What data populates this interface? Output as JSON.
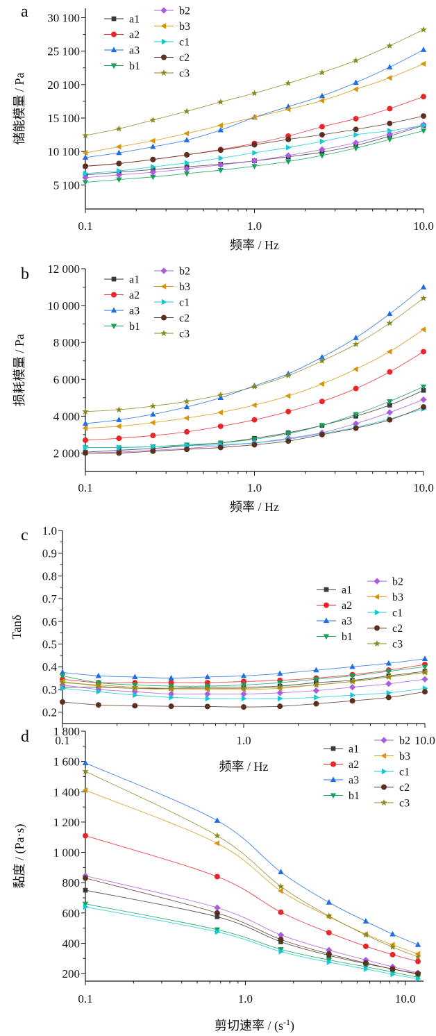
{
  "legend_labels": [
    "a1",
    "a2",
    "a3",
    "b1",
    "b2",
    "b3",
    "c1",
    "c2",
    "c3"
  ],
  "colors": {
    "a1": "#3a3a3a",
    "a2": "#e8262a",
    "a3": "#1f6fe0",
    "b1": "#16a05a",
    "b2": "#a85ce0",
    "b3": "#d6950c",
    "c1": "#13c9d6",
    "c2": "#5a3020",
    "c3": "#8a8a22"
  },
  "markers": {
    "a1": "square",
    "a2": "circle",
    "a3": "triangle-up",
    "b1": "triangle-down",
    "b2": "diamond",
    "b3": "triangle-left",
    "c1": "triangle-right",
    "c2": "circle",
    "c3": "star"
  },
  "chart_data": [
    {
      "type": "line",
      "panel": "a",
      "xlabel": "频率 / Hz",
      "ylabel": "储能模量 / Pa",
      "xscale": "log",
      "xlim": [
        0.1,
        10.0
      ],
      "ylim": [
        1500,
        31500
      ],
      "xticks": [
        "0.1",
        "1.0",
        "10.0"
      ],
      "yticks": [
        5100,
        10100,
        15100,
        20100,
        25100,
        30100
      ],
      "ytick_labels": [
        "5 100",
        "10 100",
        "15 100",
        "20 100",
        "25 100",
        "30 100"
      ],
      "legend_position": "top-left",
      "x": [
        0.1,
        0.158,
        0.251,
        0.398,
        0.631,
        1.0,
        1.585,
        2.512,
        3.981,
        6.31,
        10.0
      ],
      "series": [
        {
          "name": "a1",
          "values": [
            6600,
            7000,
            7400,
            7800,
            8200,
            8700,
            9300,
            10000,
            11000,
            12400,
            14000
          ]
        },
        {
          "name": "a2",
          "values": [
            7900,
            8300,
            8900,
            9600,
            10400,
            11300,
            12400,
            13800,
            15000,
            16500,
            18300
          ]
        },
        {
          "name": "a3",
          "values": [
            9200,
            9900,
            10800,
            11800,
            13300,
            15200,
            16800,
            18400,
            20400,
            22700,
            25300
          ]
        },
        {
          "name": "b1",
          "values": [
            5500,
            5900,
            6300,
            6800,
            7300,
            7900,
            8600,
            9500,
            10600,
            11900,
            13200
          ]
        },
        {
          "name": "b2",
          "values": [
            6200,
            6600,
            7000,
            7500,
            8100,
            8700,
            9500,
            10400,
            11400,
            12700,
            14100
          ]
        },
        {
          "name": "b3",
          "values": [
            9900,
            10800,
            11700,
            12800,
            14000,
            15200,
            16400,
            17700,
            19400,
            21100,
            23200
          ]
        },
        {
          "name": "c1",
          "values": [
            6800,
            7200,
            7800,
            8400,
            9100,
            9900,
            10700,
            11600,
            12600,
            13200,
            14000
          ]
        },
        {
          "name": "c2",
          "values": [
            7900,
            8300,
            8900,
            9600,
            10300,
            11100,
            11900,
            12600,
            13400,
            14300,
            15400
          ]
        },
        {
          "name": "c3",
          "values": [
            12500,
            13500,
            14800,
            16100,
            17500,
            18800,
            20300,
            21900,
            23700,
            25900,
            28300
          ]
        }
      ]
    },
    {
      "type": "line",
      "panel": "b",
      "xlabel": "频率 / Hz",
      "ylabel": "损耗模量 / Pa",
      "xscale": "log",
      "xlim": [
        0.1,
        10.0
      ],
      "ylim": [
        1000,
        12000
      ],
      "xticks": [
        "0.1",
        "1.0",
        "10.0"
      ],
      "yticks": [
        2000,
        4000,
        6000,
        8000,
        10000,
        12000
      ],
      "ytick_labels": [
        "2 000",
        "4 000",
        "6 000",
        "8 000",
        "10 000",
        "12 000"
      ],
      "legend_position": "top-left",
      "x": [
        0.1,
        0.158,
        0.251,
        0.398,
        0.631,
        1.0,
        1.585,
        2.512,
        3.981,
        6.31,
        10.0
      ],
      "series": [
        {
          "name": "a1",
          "values": [
            2050,
            2150,
            2250,
            2400,
            2550,
            2800,
            3100,
            3500,
            4000,
            4600,
            5400
          ]
        },
        {
          "name": "a2",
          "values": [
            2700,
            2800,
            2950,
            3150,
            3450,
            3800,
            4250,
            4800,
            5500,
            6400,
            7500
          ]
        },
        {
          "name": "a3",
          "values": [
            3600,
            3800,
            4100,
            4500,
            5000,
            5650,
            6300,
            7200,
            8250,
            9550,
            11000
          ]
        },
        {
          "name": "b1",
          "values": [
            2300,
            2300,
            2350,
            2450,
            2550,
            2750,
            3050,
            3500,
            4100,
            4800,
            5600
          ]
        },
        {
          "name": "b2",
          "values": [
            2000,
            2050,
            2150,
            2250,
            2400,
            2550,
            2800,
            3100,
            3600,
            4200,
            4900
          ]
        },
        {
          "name": "b3",
          "values": [
            3350,
            3450,
            3650,
            3900,
            4200,
            4600,
            5100,
            5750,
            6550,
            7500,
            8700
          ]
        },
        {
          "name": "c1",
          "values": [
            2300,
            2300,
            2350,
            2400,
            2450,
            2550,
            2750,
            3050,
            3400,
            3850,
            4400
          ]
        },
        {
          "name": "c2",
          "values": [
            2000,
            2000,
            2100,
            2200,
            2300,
            2450,
            2650,
            3000,
            3350,
            3800,
            4500
          ]
        },
        {
          "name": "c3",
          "values": [
            4250,
            4350,
            4550,
            4800,
            5150,
            5600,
            6200,
            7000,
            7900,
            9050,
            10400
          ]
        }
      ]
    },
    {
      "type": "line",
      "panel": "c",
      "xlabel": "频率 / Hz",
      "ylabel": "Tanδ",
      "xscale": "log",
      "xlim": [
        0.1,
        10.0
      ],
      "ylim": [
        0.15,
        1.0
      ],
      "xticks": [
        "0.1",
        "1.0",
        "10.0"
      ],
      "yticks": [
        0.2,
        0.3,
        0.4,
        0.5,
        0.6,
        0.7,
        0.8,
        0.9,
        1.0
      ],
      "ytick_labels": [
        "0.2",
        "0.3",
        "0.4",
        "0.5",
        "0.6",
        "0.7",
        "0.8",
        "0.9",
        "1.0"
      ],
      "legend_position": "top-right",
      "x": [
        0.1,
        0.158,
        0.251,
        0.398,
        0.631,
        1.0,
        1.585,
        2.512,
        3.981,
        6.31,
        10.0
      ],
      "series": [
        {
          "name": "a1",
          "values": [
            0.31,
            0.31,
            0.305,
            0.305,
            0.31,
            0.31,
            0.315,
            0.33,
            0.34,
            0.36,
            0.38
          ]
        },
        {
          "name": "a2",
          "values": [
            0.345,
            0.33,
            0.33,
            0.33,
            0.33,
            0.335,
            0.34,
            0.35,
            0.365,
            0.385,
            0.41
          ]
        },
        {
          "name": "a3",
          "values": [
            0.375,
            0.36,
            0.355,
            0.35,
            0.355,
            0.36,
            0.37,
            0.385,
            0.4,
            0.415,
            0.435
          ]
        },
        {
          "name": "b1",
          "values": [
            0.36,
            0.33,
            0.32,
            0.315,
            0.315,
            0.32,
            0.33,
            0.345,
            0.36,
            0.38,
            0.4
          ]
        },
        {
          "name": "b2",
          "values": [
            0.32,
            0.3,
            0.29,
            0.28,
            0.28,
            0.28,
            0.285,
            0.295,
            0.31,
            0.325,
            0.345
          ]
        },
        {
          "name": "b3",
          "values": [
            0.335,
            0.315,
            0.305,
            0.3,
            0.3,
            0.3,
            0.305,
            0.32,
            0.335,
            0.355,
            0.375
          ]
        },
        {
          "name": "c1",
          "values": [
            0.305,
            0.29,
            0.275,
            0.265,
            0.26,
            0.26,
            0.26,
            0.265,
            0.275,
            0.285,
            0.305
          ]
        },
        {
          "name": "c2",
          "values": [
            0.245,
            0.232,
            0.228,
            0.226,
            0.225,
            0.223,
            0.226,
            0.237,
            0.25,
            0.265,
            0.29
          ]
        },
        {
          "name": "c3",
          "values": [
            0.33,
            0.32,
            0.31,
            0.305,
            0.305,
            0.305,
            0.31,
            0.32,
            0.335,
            0.355,
            0.375
          ]
        }
      ]
    },
    {
      "type": "line",
      "panel": "d",
      "xlabel": "剪切速率 / (s",
      "xlabel_superscript": "-1",
      "xlabel_suffix": ")",
      "ylabel": "黏度 / (Pa·s)",
      "xscale": "log",
      "xlim": [
        0.1,
        13.0
      ],
      "ylim": [
        150,
        1800
      ],
      "xticks": [
        "0.1",
        "1.0",
        "10.0"
      ],
      "yticks": [
        200,
        400,
        600,
        800,
        1000,
        1200,
        1400,
        1600,
        1800
      ],
      "ytick_labels": [
        "200",
        "400",
        "600",
        "800",
        "1 000",
        "1 200",
        "1 400",
        "1 600",
        "1 800"
      ],
      "legend_position": "top-right",
      "x": [
        0.1,
        0.667,
        1.667,
        3.333,
        5.667,
        8.333,
        12.0
      ],
      "series": [
        {
          "name": "a1",
          "values": [
            750,
            575,
            410,
            320,
            265,
            230,
            195
          ]
        },
        {
          "name": "a2",
          "values": [
            1110,
            840,
            605,
            470,
            380,
            325,
            280
          ]
        },
        {
          "name": "a3",
          "values": [
            1590,
            1210,
            870,
            670,
            545,
            460,
            390
          ]
        },
        {
          "name": "b1",
          "values": [
            660,
            490,
            360,
            290,
            245,
            210,
            175
          ]
        },
        {
          "name": "b2",
          "values": [
            845,
            635,
            455,
            355,
            290,
            245,
            205
          ]
        },
        {
          "name": "b3",
          "values": [
            1410,
            1060,
            745,
            575,
            460,
            390,
            330
          ]
        },
        {
          "name": "c1",
          "values": [
            640,
            475,
            345,
            275,
            230,
            195,
            165
          ]
        },
        {
          "name": "c2",
          "values": [
            830,
            600,
            425,
            330,
            270,
            230,
            200
          ]
        },
        {
          "name": "c3",
          "values": [
            1535,
            1110,
            775,
            580,
            455,
            375,
            310
          ]
        }
      ]
    }
  ]
}
